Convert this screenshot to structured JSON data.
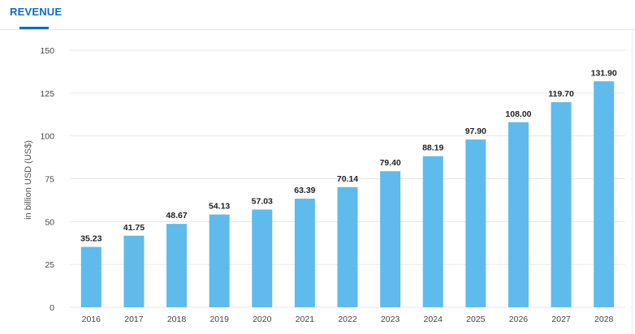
{
  "tab": {
    "label": "REVENUE"
  },
  "colors": {
    "accent": "#0a6cc9",
    "bar": "#5fbbeb",
    "grid": "#e6e6e6"
  },
  "chart_data": {
    "type": "bar",
    "title": "",
    "xlabel": "",
    "ylabel": "in billion USD (US$)",
    "ylim": [
      0,
      150
    ],
    "yticks": [
      0,
      25,
      50,
      75,
      100,
      125,
      150
    ],
    "categories": [
      "2016",
      "2017",
      "2018",
      "2019",
      "2020",
      "2021",
      "2022",
      "2023",
      "2024",
      "2025",
      "2026",
      "2027",
      "2028"
    ],
    "values": [
      35.23,
      41.75,
      48.67,
      54.13,
      57.03,
      63.39,
      70.14,
      79.4,
      88.19,
      97.9,
      108.0,
      119.7,
      131.9
    ],
    "data_labels": [
      "35.23",
      "41.75",
      "48.67",
      "54.13",
      "57.03",
      "63.39",
      "70.14",
      "79.40",
      "88.19",
      "97.90",
      "108.00",
      "119.70",
      "131.90"
    ],
    "grid": true,
    "legend": "none"
  }
}
